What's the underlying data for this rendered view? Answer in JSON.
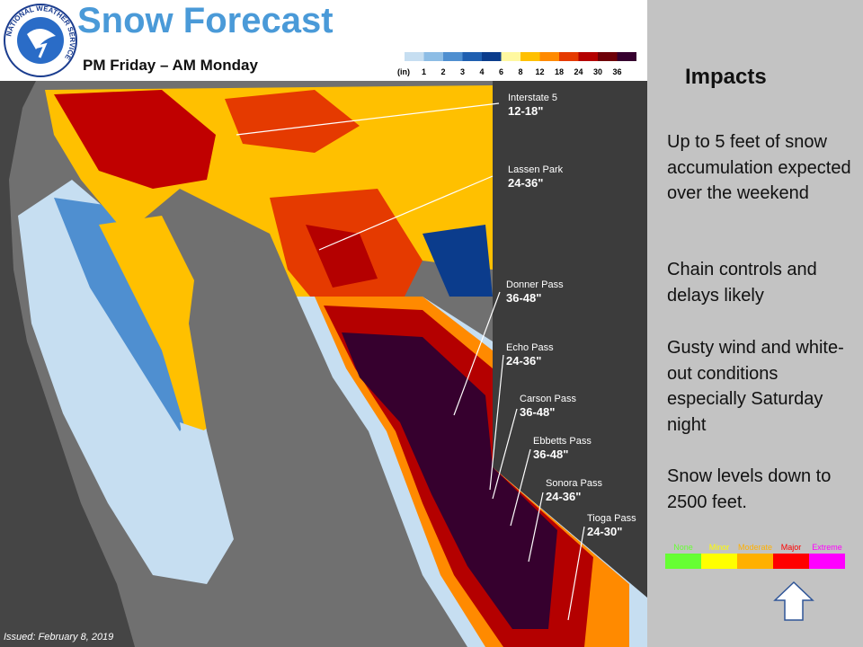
{
  "header": {
    "title": "Snow Forecast",
    "subtitle": "PM Friday – AM Monday",
    "logo_text": "NATIONAL WEATHER SERVICE"
  },
  "legend": {
    "unit": "(in)",
    "labels": [
      "1",
      "2",
      "3",
      "4",
      "6",
      "8",
      "12",
      "18",
      "24",
      "30",
      "36"
    ],
    "colors": [
      "#c6def1",
      "#8dbde5",
      "#4f8fd0",
      "#1f5fb0",
      "#0b3c8c",
      "#fff8a0",
      "#ffc000",
      "#ff8a00",
      "#e53a00",
      "#b40000",
      "#6e0008",
      "#36002e"
    ]
  },
  "locations": [
    {
      "name": "Interstate 5",
      "amount": "12-18\""
    },
    {
      "name": "Lassen Park",
      "amount": "24-36\""
    },
    {
      "name": "Donner Pass",
      "amount": "36-48\""
    },
    {
      "name": "Echo Pass",
      "amount": "24-36\""
    },
    {
      "name": "Carson Pass",
      "amount": "36-48\""
    },
    {
      "name": "Ebbetts Pass",
      "amount": "36-48\""
    },
    {
      "name": "Sonora Pass",
      "amount": "24-36\""
    },
    {
      "name": "Tioga Pass",
      "amount": "24-30\""
    }
  ],
  "impacts": {
    "title": "Impacts",
    "items": [
      "Up to 5 feet of snow accumulation expected over the weekend",
      "Chain controls and delays likely",
      "Gusty wind and white-out conditions especially Saturday night",
      "Snow levels down to 2500 feet."
    ]
  },
  "impact_scale": {
    "levels": [
      "None",
      "Minor",
      "Moderate",
      "Major",
      "Extreme"
    ],
    "colors": [
      "#66ff33",
      "#ffff00",
      "#ffb000",
      "#ff0000",
      "#ff00ff"
    ]
  },
  "issued": "Issued: February 8, 2019"
}
